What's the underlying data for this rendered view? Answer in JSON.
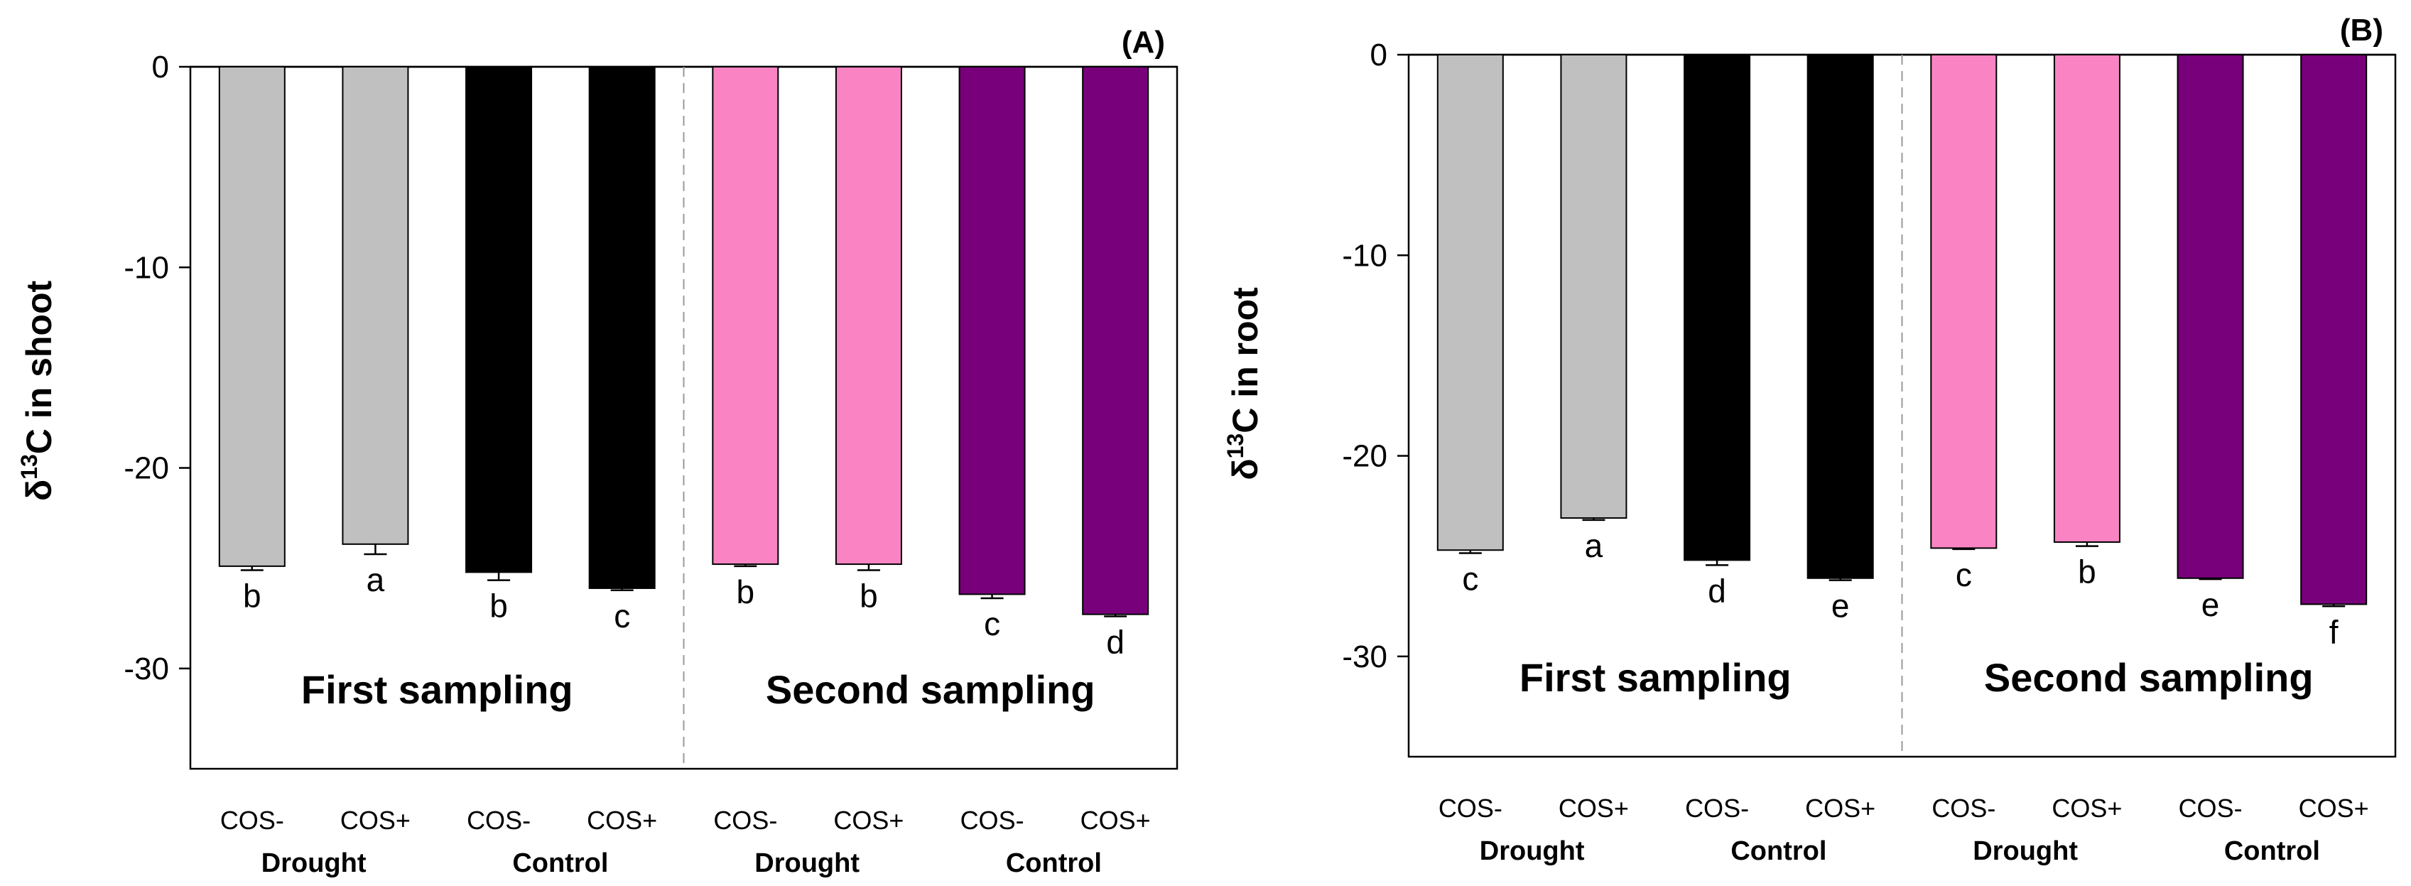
{
  "chart_data": [
    {
      "type": "bar",
      "panel_label": "(A)",
      "ylabel_prefix": "δ",
      "ylabel_sup": "13",
      "ylabel_suffix": "C in shoot",
      "ylim": [
        -35,
        0
      ],
      "yticks": [
        0,
        -10,
        -20,
        -30
      ],
      "ytick_labels": [
        "0",
        "-10",
        "-20",
        "-30"
      ],
      "categories": [
        "COS-",
        "COS+",
        "COS-",
        "COS+",
        "COS-",
        "COS+",
        "COS-",
        "COS+"
      ],
      "groups": [
        "Drought",
        "Control",
        "Drought",
        "Control"
      ],
      "samplings": [
        "First sampling",
        "Second sampling"
      ],
      "values": [
        -24.9,
        -23.8,
        -25.2,
        -26.0,
        -24.8,
        -24.8,
        -26.3,
        -27.3
      ],
      "errors": [
        0.2,
        0.5,
        0.4,
        0.1,
        0.1,
        0.3,
        0.2,
        0.1
      ],
      "letters": [
        "b",
        "a",
        "b",
        "c",
        "b",
        "b",
        "c",
        "d"
      ],
      "colors": [
        "#c0c0c0",
        "#c0c0c0",
        "#000000",
        "#000000",
        "#fa84c3",
        "#fa84c3",
        "#78007a",
        "#78007a"
      ]
    },
    {
      "type": "bar",
      "panel_label": "(B)",
      "ylabel_prefix": "δ",
      "ylabel_sup": "13",
      "ylabel_suffix": "C in root",
      "ylim": [
        -35,
        0
      ],
      "yticks": [
        0,
        -10,
        -20,
        -30
      ],
      "ytick_labels": [
        "0",
        "-10",
        "-20",
        "-30"
      ],
      "categories": [
        "COS-",
        "COS+",
        "COS-",
        "COS+",
        "COS-",
        "COS+",
        "COS-",
        "COS+"
      ],
      "groups": [
        "Drought",
        "Control",
        "Drought",
        "Control"
      ],
      "samplings": [
        "First sampling",
        "Second sampling"
      ],
      "values": [
        -24.7,
        -23.1,
        -25.2,
        -26.1,
        -24.6,
        -24.3,
        -26.1,
        -27.4
      ],
      "errors": [
        0.15,
        0.1,
        0.25,
        0.1,
        0.05,
        0.2,
        0.05,
        0.1
      ],
      "letters": [
        "c",
        "a",
        "d",
        "e",
        "c",
        "b",
        "e",
        "f"
      ],
      "colors": [
        "#c0c0c0",
        "#c0c0c0",
        "#000000",
        "#000000",
        "#fa84c3",
        "#fa84c3",
        "#78007a",
        "#78007a"
      ]
    }
  ]
}
